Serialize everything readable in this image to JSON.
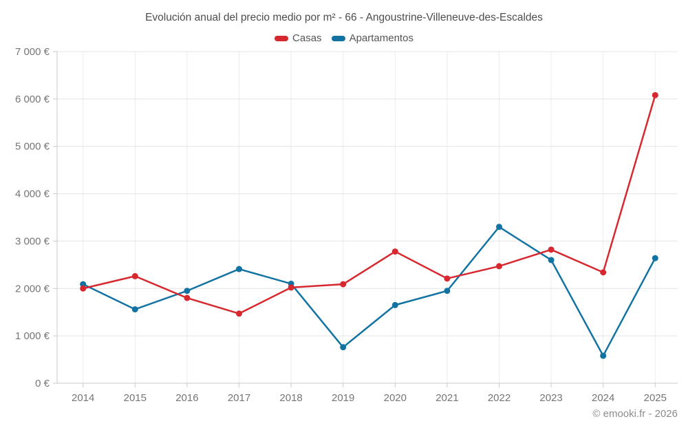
{
  "title": "Evolución anual del precio medio por m² - 66 - Angoustrine-Villeneuve-des-Escaldes",
  "footer_credit": "© emooki.fr - 2026",
  "colors": {
    "casas": "#d7282f",
    "apartamentos": "#1273a3",
    "horizontal_gridline": "#e4e4e4",
    "vertical_gridline": "#ececec",
    "axis_line": "#c9c9c9",
    "tick_label": "#757575",
    "title_text": "#4d4d4d",
    "footer_text": "#8c8c8c"
  },
  "chart_data": {
    "type": "line",
    "title": "Evolución anual del precio medio por m² - 66 - Angoustrine-Villeneuve-des-Escaldes",
    "x": [
      "2014",
      "2015",
      "2016",
      "2017",
      "2018",
      "2019",
      "2020",
      "2021",
      "2022",
      "2023",
      "2024",
      "2025"
    ],
    "series": [
      {
        "name": "Casas",
        "color": "#d7282f",
        "values": [
          2000,
          2260,
          1800,
          1470,
          2020,
          2090,
          2780,
          2210,
          2470,
          2820,
          2340,
          6080
        ]
      },
      {
        "name": "Apartamentos",
        "color": "#1273a3",
        "values": [
          2090,
          1560,
          1950,
          2410,
          2100,
          760,
          1650,
          1950,
          3300,
          2600,
          580,
          2640
        ]
      }
    ],
    "xlabel": "",
    "ylabel": "",
    "ylim": [
      0,
      7000
    ],
    "ytick_values": [
      0,
      1000,
      2000,
      3000,
      4000,
      5000,
      6000,
      7000
    ],
    "ytick_labels": [
      "0 €",
      "1 000 €",
      "2 000 €",
      "3 000 €",
      "4 000 €",
      "5 000 €",
      "6 000 €",
      "7 000 €"
    ],
    "grid": true,
    "legend_position": "top",
    "marker": "circle"
  }
}
